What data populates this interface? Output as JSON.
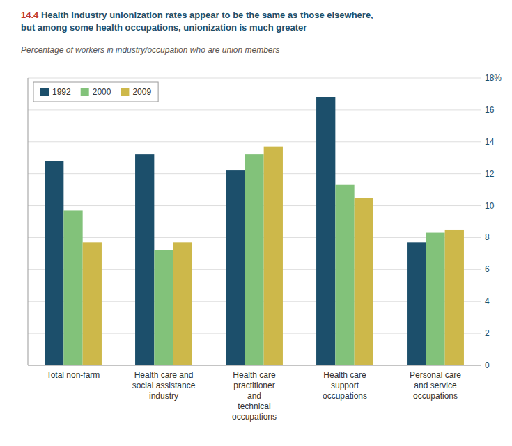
{
  "chart_data": {
    "type": "bar",
    "title": "14.4 Health industry unionization rates appear to be the same as those elsewhere,\nbut among some health occupations, unionization is much greater",
    "subtitle": "Percentage of workers in industry/occupation who are union members",
    "categories": [
      "Total non-farm",
      "Health care and\nsocial assistance\nindustry",
      "Health care\npractitioner\nand\ntechnical\noccupations",
      "Health care\nsupport\noccupations",
      "Personal care\nand service\noccupations"
    ],
    "series": [
      {
        "name": "1992",
        "color": "#1c4f6b",
        "values": [
          12.8,
          13.2,
          12.2,
          16.8,
          7.7
        ]
      },
      {
        "name": "2000",
        "color": "#82c27a",
        "values": [
          9.7,
          7.2,
          13.2,
          11.3,
          8.3
        ]
      },
      {
        "name": "2009",
        "color": "#cdb84a",
        "values": [
          7.7,
          7.7,
          13.7,
          10.5,
          8.5
        ]
      }
    ],
    "ylim": [
      0,
      18
    ],
    "yticks": [
      0,
      2,
      4,
      6,
      8,
      10,
      12,
      14,
      16,
      {
        "value": 18,
        "label": "18%"
      }
    ],
    "grid": true,
    "legend": "top-left"
  }
}
